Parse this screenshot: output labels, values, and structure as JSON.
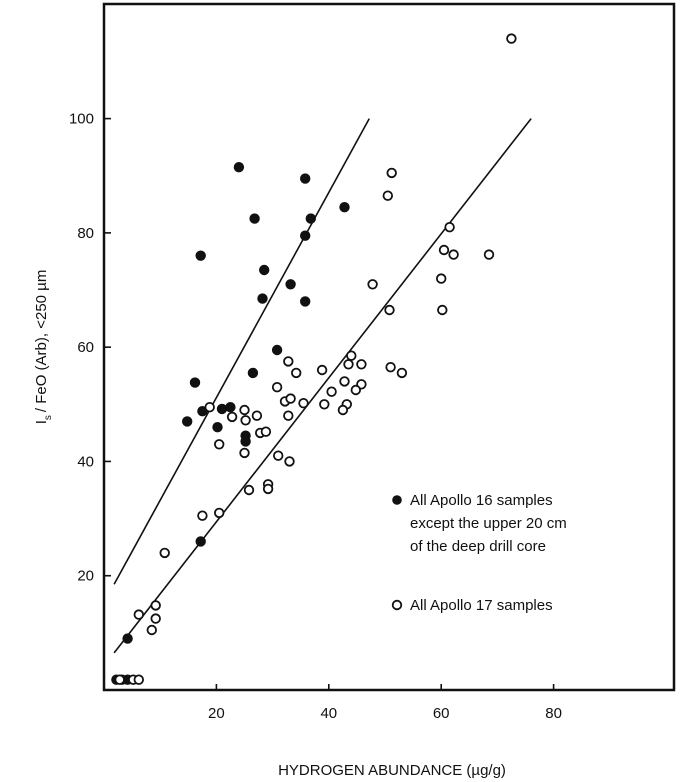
{
  "chart_data": {
    "type": "scatter",
    "xlabel": "HYDROGEN ABUNDANCE (µg/g)",
    "ylabel_main": "I",
    "ylabel_sub": "s",
    "ylabel_rest": "/ FeO (Arb), <250 µm",
    "xlim": [
      0,
      100
    ],
    "ylim": [
      0,
      118
    ],
    "x_ticks": [
      20,
      40,
      60,
      80
    ],
    "y_ticks": [
      20,
      40,
      60,
      80,
      100
    ],
    "grid": false,
    "legend_position": "lower-right",
    "series": [
      {
        "name": "All Apollo 16 samples except the upper 20 cm of the deep drill core",
        "legend_lines": [
          "All Apollo 16 samples",
          "except the upper 20 cm",
          "of the deep drill core"
        ],
        "marker": "filled-circle",
        "points": [
          [
            24,
            91.5
          ],
          [
            35.8,
            89.5
          ],
          [
            26.8,
            82.5
          ],
          [
            36.8,
            82.5
          ],
          [
            42.8,
            84.5
          ],
          [
            17.2,
            76
          ],
          [
            35.8,
            79.5
          ],
          [
            28.5,
            73.5
          ],
          [
            33.2,
            71
          ],
          [
            28.2,
            68.5
          ],
          [
            35.8,
            68
          ],
          [
            30.8,
            59.5
          ],
          [
            26.5,
            55.5
          ],
          [
            16.2,
            53.8
          ],
          [
            17.5,
            48.8
          ],
          [
            21,
            49.2
          ],
          [
            22.5,
            49.5
          ],
          [
            14.8,
            47
          ],
          [
            20.2,
            46
          ],
          [
            25.2,
            44.5
          ],
          [
            25.2,
            43.5
          ],
          [
            17.2,
            26
          ],
          [
            4.2,
            9
          ],
          [
            2.2,
            1.8
          ],
          [
            3.2,
            1.8
          ],
          [
            4.2,
            1.8
          ]
        ]
      },
      {
        "name": "All Apollo 17 samples",
        "legend_lines": [
          "All Apollo 17 samples"
        ],
        "marker": "open-circle",
        "points": [
          [
            72.5,
            114
          ],
          [
            51.2,
            90.5
          ],
          [
            50.5,
            86.5
          ],
          [
            61.5,
            81
          ],
          [
            60.5,
            77
          ],
          [
            62.2,
            76.2
          ],
          [
            68.5,
            76.2
          ],
          [
            47.8,
            71
          ],
          [
            60,
            72
          ],
          [
            60.2,
            66.5
          ],
          [
            50.8,
            66.5
          ],
          [
            51,
            56.5
          ],
          [
            53,
            55.5
          ],
          [
            32.8,
            57.5
          ],
          [
            34.2,
            55.5
          ],
          [
            38.8,
            56
          ],
          [
            44,
            58.5
          ],
          [
            43.5,
            57
          ],
          [
            45.8,
            57
          ],
          [
            30.8,
            53
          ],
          [
            42.8,
            54
          ],
          [
            45.8,
            53.5
          ],
          [
            40.5,
            52.2
          ],
          [
            44.8,
            52.5
          ],
          [
            32.2,
            50.5
          ],
          [
            33.2,
            51
          ],
          [
            35.5,
            50.2
          ],
          [
            39.2,
            50
          ],
          [
            43.2,
            50
          ],
          [
            42.5,
            49
          ],
          [
            32.8,
            48
          ],
          [
            18.8,
            49.5
          ],
          [
            25,
            49
          ],
          [
            27.2,
            48
          ],
          [
            22.8,
            47.8
          ],
          [
            25.2,
            47.2
          ],
          [
            20.5,
            43
          ],
          [
            25,
            41.5
          ],
          [
            27.8,
            45
          ],
          [
            28.8,
            45.2
          ],
          [
            31,
            41
          ],
          [
            33,
            40
          ],
          [
            29.2,
            36
          ],
          [
            29.2,
            35.2
          ],
          [
            25.8,
            35
          ],
          [
            17.5,
            30.5
          ],
          [
            20.5,
            31
          ],
          [
            10.8,
            24
          ],
          [
            9.2,
            14.8
          ],
          [
            6.2,
            13.2
          ],
          [
            9.2,
            12.5
          ],
          [
            8.5,
            10.5
          ],
          [
            2.8,
            1.8
          ],
          [
            5.2,
            1.8
          ],
          [
            6.2,
            1.8
          ]
        ]
      }
    ],
    "fit_lines": [
      {
        "from": [
          1.8,
          18.5
        ],
        "to": [
          47.2,
          100
        ]
      },
      {
        "from": [
          1.8,
          6.5
        ],
        "to": [
          76,
          100
        ]
      }
    ]
  }
}
